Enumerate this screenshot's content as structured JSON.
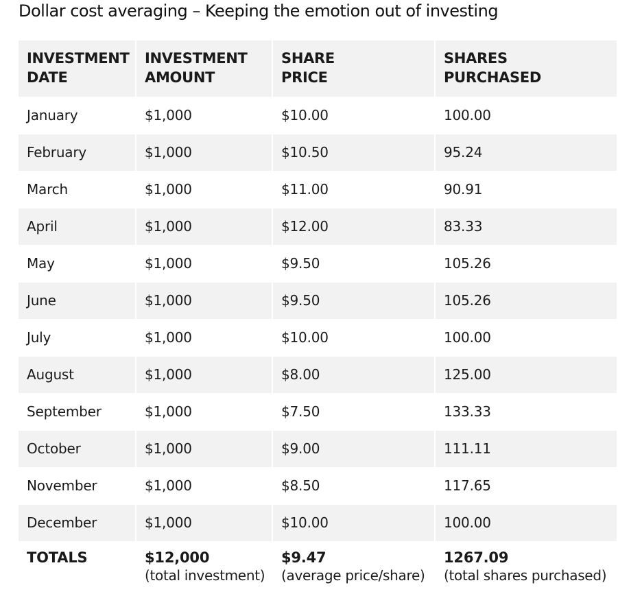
{
  "title": "Dollar cost averaging – Keeping the emotion out of investing",
  "table": {
    "headers": [
      {
        "line1": "INVESTMENT",
        "line2": "DATE"
      },
      {
        "line1": "INVESTMENT",
        "line2": "AMOUNT"
      },
      {
        "line1": "SHARE",
        "line2": "PRICE"
      },
      {
        "line1": "SHARES",
        "line2": "PURCHASED"
      }
    ],
    "rows": [
      {
        "date": "January",
        "amount": "$1,000",
        "price": "$10.00",
        "shares": "100.00"
      },
      {
        "date": "February",
        "amount": "$1,000",
        "price": "$10.50",
        "shares": "95.24"
      },
      {
        "date": "March",
        "amount": "$1,000",
        "price": "$11.00",
        "shares": "90.91"
      },
      {
        "date": "April",
        "amount": "$1,000",
        "price": "$12.00",
        "shares": "83.33"
      },
      {
        "date": "May",
        "amount": "$1,000",
        "price": "$9.50",
        "shares": "105.26"
      },
      {
        "date": "June",
        "amount": "$1,000",
        "price": "$9.50",
        "shares": "105.26"
      },
      {
        "date": "July",
        "amount": "$1,000",
        "price": "$10.00",
        "shares": "100.00"
      },
      {
        "date": "August",
        "amount": "$1,000",
        "price": "$8.00",
        "shares": "125.00"
      },
      {
        "date": "September",
        "amount": "$1,000",
        "price": "$7.50",
        "shares": "133.33"
      },
      {
        "date": "October",
        "amount": "$1,000",
        "price": "$9.00",
        "shares": "111.11"
      },
      {
        "date": "November",
        "amount": "$1,000",
        "price": "$8.50",
        "shares": "117.65"
      },
      {
        "date": "December",
        "amount": "$1,000",
        "price": "$10.00",
        "shares": "100.00"
      }
    ],
    "totals": {
      "label": "TOTALS",
      "amount": "$12,000",
      "amount_note": "(total investment)",
      "price": "$9.47",
      "price_note": "(average price/share)",
      "shares": "1267.09",
      "shares_note": "(total shares purchased)"
    }
  }
}
